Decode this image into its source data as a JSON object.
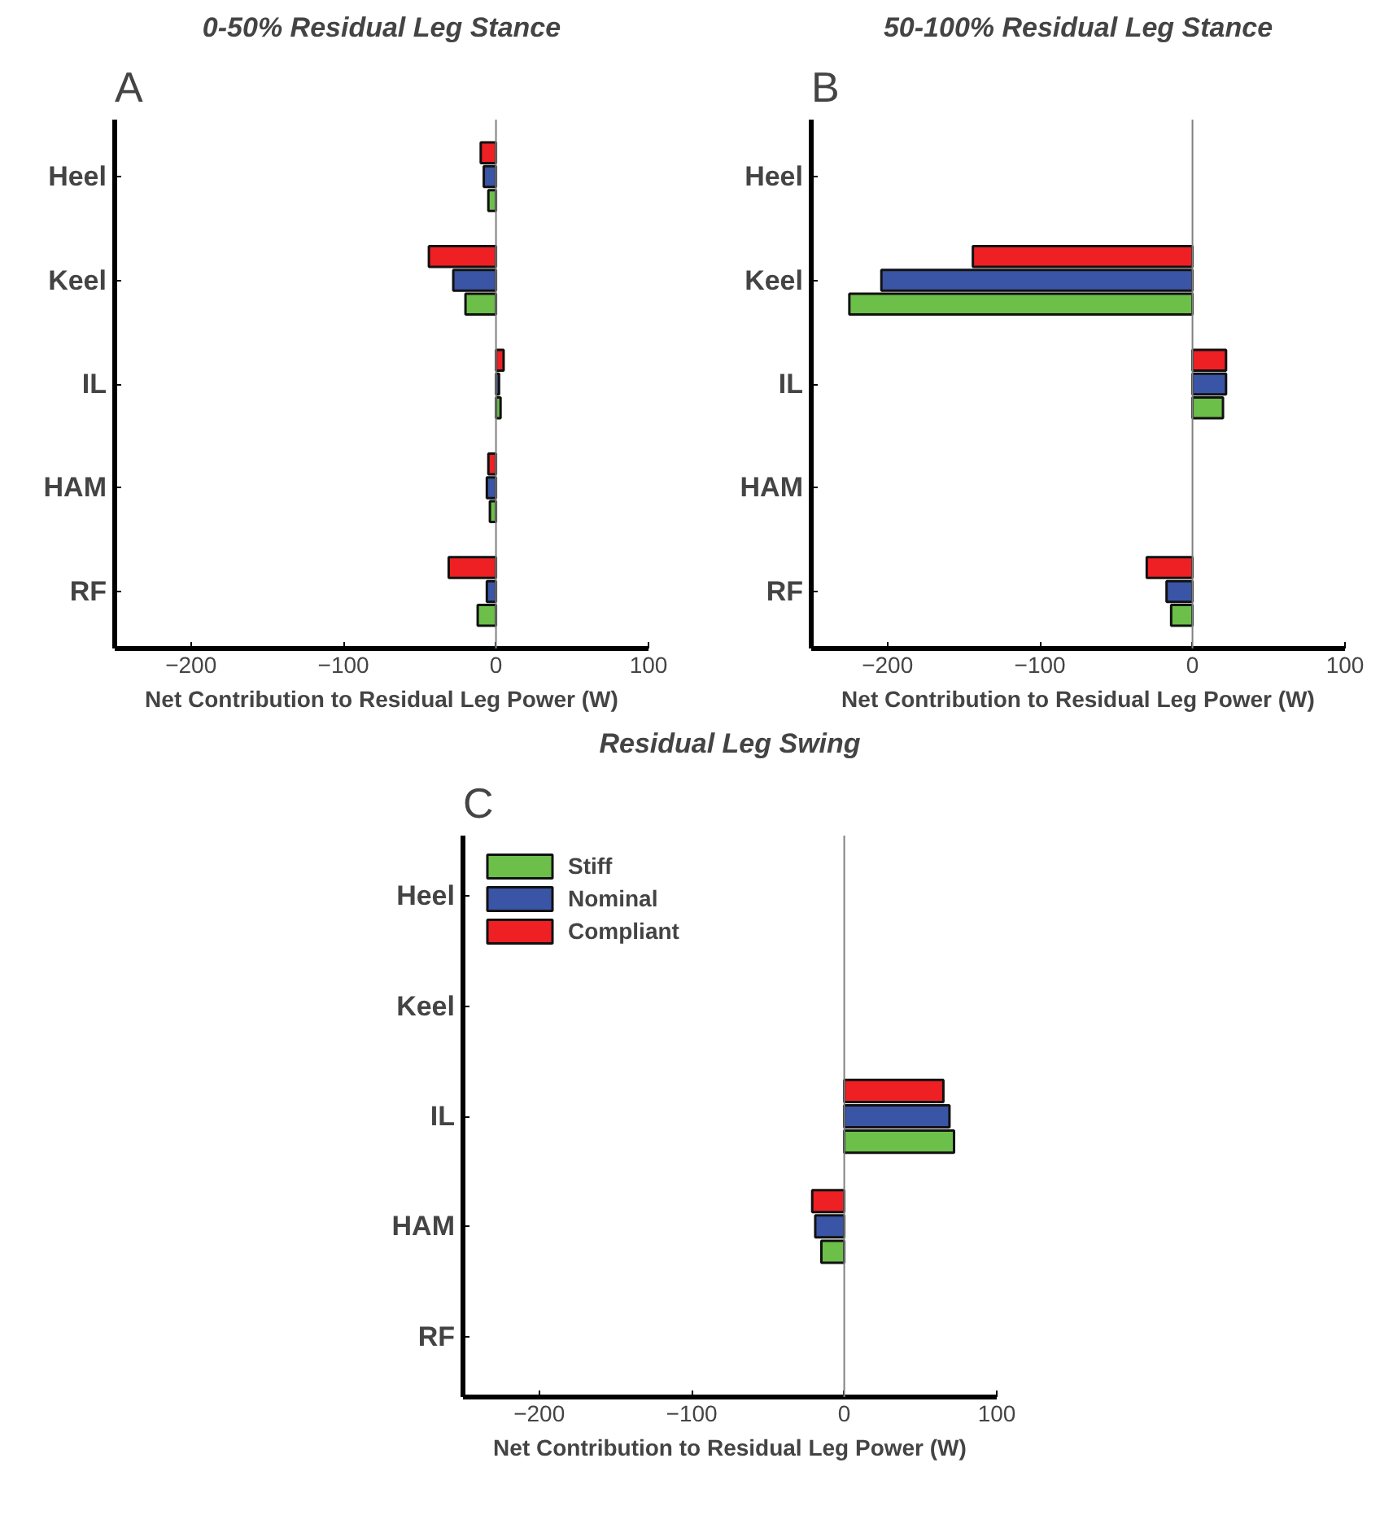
{
  "chart_data": [
    {
      "type": "bar",
      "orientation": "horizontal",
      "title": "0-50% Residual Leg Stance",
      "xlabel": "Net Contribution to Residual Leg Power (W)",
      "annotations": [
        "A"
      ],
      "categories": [
        "Heel",
        "Keel",
        "IL",
        "HAM",
        "RF"
      ],
      "series": [
        {
          "color": "#6cc04a",
          "values": [
            -5,
            -20,
            3,
            -4,
            -12
          ]
        },
        {
          "color": "#3a55a5",
          "values": [
            -8,
            -28,
            2,
            -6,
            -6
          ]
        },
        {
          "color": "#ee2024",
          "values": [
            -10,
            -44,
            5,
            -5,
            -31
          ]
        }
      ],
      "xlim": [
        -250,
        100
      ],
      "xticks": [
        -200,
        -100,
        0,
        100
      ],
      "grid": false,
      "ref_lines": [
        {
          "axis": "x",
          "value": 0,
          "color": "#808080"
        }
      ]
    },
    {
      "type": "bar",
      "orientation": "horizontal",
      "title": "50-100% Residual Leg Stance",
      "xlabel": "Net Contribution to Residual Leg Power (W)",
      "annotations": [
        "B"
      ],
      "categories": [
        "Heel",
        "Keel",
        "IL",
        "HAM",
        "RF"
      ],
      "series": [
        {
          "color": "#6cc04a",
          "values": [
            null,
            -225,
            20,
            null,
            -14
          ]
        },
        {
          "color": "#3a55a5",
          "values": [
            null,
            -204,
            22,
            null,
            -17
          ]
        },
        {
          "color": "#ee2024",
          "values": [
            null,
            -144,
            22,
            null,
            -30
          ]
        }
      ],
      "xlim": [
        -250,
        100
      ],
      "xticks": [
        -200,
        -100,
        0,
        100
      ],
      "grid": false,
      "ref_lines": [
        {
          "axis": "x",
          "value": 0,
          "color": "#808080"
        }
      ]
    },
    {
      "type": "bar",
      "orientation": "horizontal",
      "title": "Residual Leg Swing",
      "xlabel": "Net Contribution to Residual Leg Power (W)",
      "annotations": [
        "C"
      ],
      "categories": [
        "Heel",
        "Keel",
        "IL",
        "HAM",
        "RF"
      ],
      "series": [
        {
          "name": "Stiff",
          "color": "#6cc04a",
          "values": [
            null,
            null,
            72,
            -15,
            null
          ]
        },
        {
          "name": "Nominal",
          "color": "#3a55a5",
          "values": [
            null,
            null,
            69,
            -19,
            null
          ]
        },
        {
          "name": "Compliant",
          "color": "#ee2024",
          "values": [
            null,
            null,
            65,
            -21,
            null
          ]
        }
      ],
      "xlim": [
        -250,
        100
      ],
      "xticks": [
        -200,
        -100,
        0,
        100
      ],
      "grid": false,
      "legend": "top left",
      "ref_lines": [
        {
          "axis": "x",
          "value": 0,
          "color": "#808080"
        }
      ]
    }
  ]
}
